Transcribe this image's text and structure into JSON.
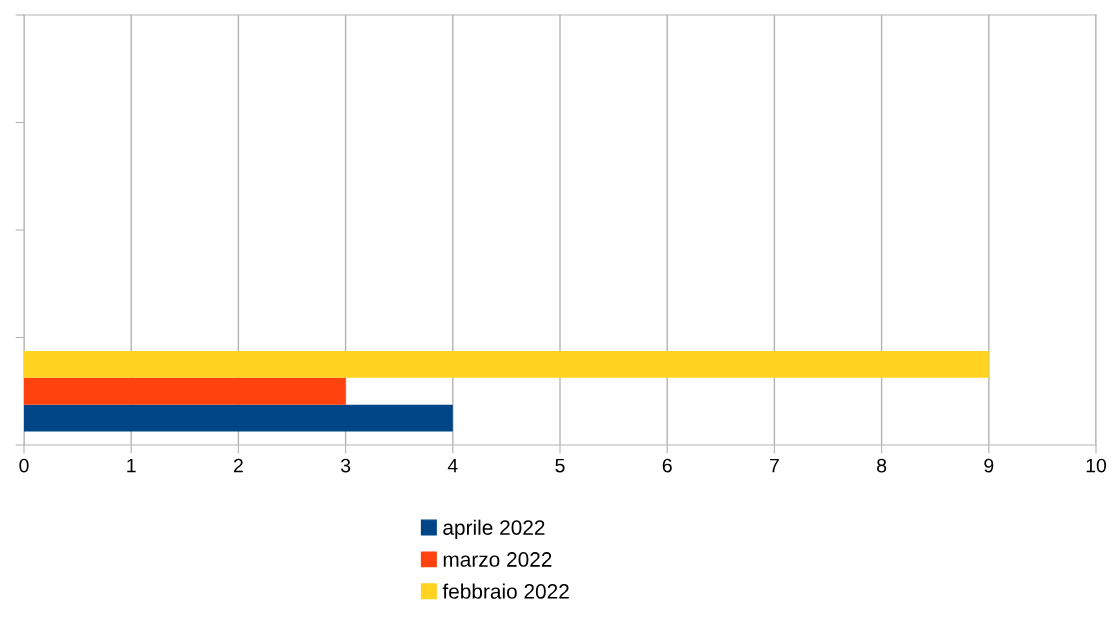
{
  "chart_data": {
    "type": "bar",
    "orientation": "horizontal",
    "categories": [
      null,
      null,
      null,
      null
    ],
    "series": [
      {
        "name": "aprile 2022",
        "color": "#004586",
        "values": [
          null,
          null,
          null,
          4
        ]
      },
      {
        "name": "marzo 2022",
        "color": "#ff420e",
        "values": [
          null,
          null,
          null,
          3
        ]
      },
      {
        "name": "febbraio 2022",
        "color": "#ffd320",
        "values": [
          null,
          null,
          null,
          9
        ]
      }
    ],
    "xlim": [
      0,
      10
    ],
    "xticks": [
      0,
      1,
      2,
      3,
      4,
      5,
      6,
      7,
      8,
      9,
      10
    ],
    "grid": "x",
    "legend": "bottom",
    "tick_labels": "x"
  }
}
